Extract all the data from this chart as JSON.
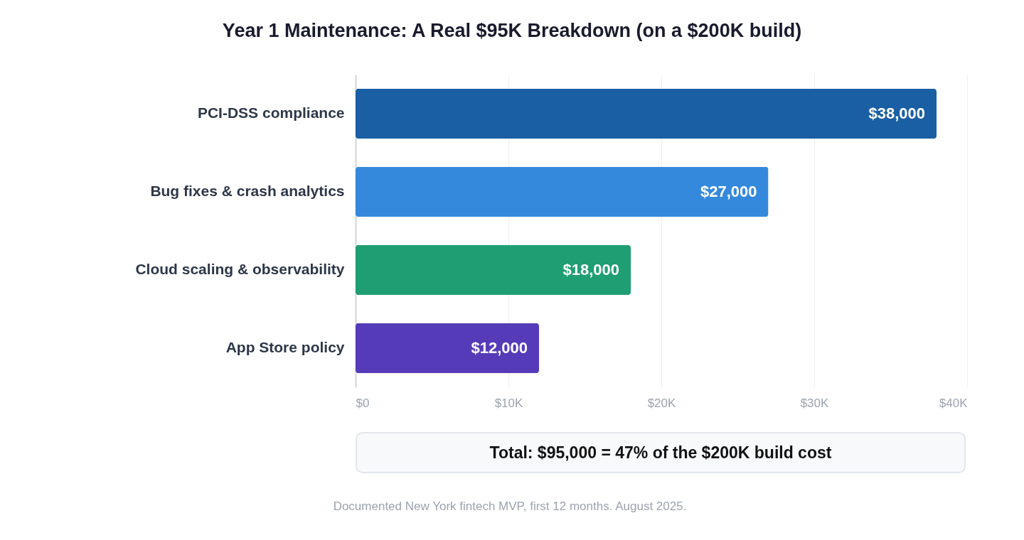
{
  "chart_data": {
    "type": "bar",
    "orientation": "horizontal",
    "title": "Year 1 Maintenance: A Real $95K Breakdown (on a $200K build)",
    "categories": [
      "PCI-DSS compliance",
      "Bug fixes & crash analytics",
      "Cloud scaling & observability",
      "App Store policy"
    ],
    "values": [
      38000,
      27000,
      18000,
      12000
    ],
    "colors": [
      "#1a5fa3",
      "#3589dc",
      "#1f9e74",
      "#553bb8"
    ],
    "value_labels": [
      "$38,000",
      "$27,000",
      "$18,000",
      "$12,000"
    ],
    "xlim": [
      0,
      40000
    ],
    "xticks": [
      {
        "value": 0,
        "label": "$0"
      },
      {
        "value": 10000,
        "label": "$10K"
      },
      {
        "value": 20000,
        "label": "$20K"
      },
      {
        "value": 30000,
        "label": "$30K"
      },
      {
        "value": 40000,
        "label": "$40K"
      }
    ],
    "grid": "x",
    "legend": false,
    "annotations": [
      "Total: $95,000 = 47% of the $200K build cost",
      "Documented New York fintech MVP, first 12 months. August 2025."
    ]
  }
}
